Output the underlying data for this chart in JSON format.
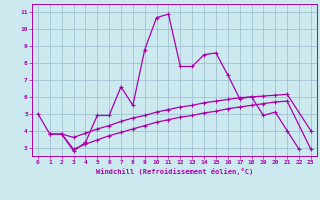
{
  "xlabel": "Windchill (Refroidissement éolien,°C)",
  "background_color": "#cce9f0",
  "line_color": "#aa00aa",
  "grid_color": "#99bbcc",
  "xlim": [
    -0.5,
    23.5
  ],
  "ylim": [
    2.5,
    11.5
  ],
  "xticks": [
    0,
    1,
    2,
    3,
    4,
    5,
    6,
    7,
    8,
    9,
    10,
    11,
    12,
    13,
    14,
    15,
    16,
    17,
    18,
    19,
    20,
    21,
    22,
    23
  ],
  "yticks": [
    3,
    4,
    5,
    6,
    7,
    8,
    9,
    10,
    11
  ],
  "line1_x": [
    0,
    1,
    2,
    3,
    4,
    5,
    6,
    7,
    8,
    9,
    10,
    11,
    12,
    13,
    14,
    15,
    16,
    17,
    18,
    19,
    20,
    21,
    22
  ],
  "line1_y": [
    5.0,
    3.8,
    3.8,
    2.8,
    3.3,
    4.9,
    4.9,
    6.6,
    5.5,
    8.8,
    10.7,
    10.9,
    7.8,
    7.8,
    8.5,
    8.6,
    7.3,
    5.9,
    6.0,
    4.9,
    5.1,
    4.0,
    2.9
  ],
  "line2_x": [
    1,
    2,
    3,
    4,
    5,
    6,
    7,
    8,
    9,
    10,
    11,
    12,
    13,
    14,
    15,
    16,
    17,
    18,
    19,
    20,
    21,
    23
  ],
  "line2_y": [
    3.8,
    3.8,
    3.6,
    3.85,
    4.1,
    4.3,
    4.55,
    4.75,
    4.9,
    5.1,
    5.25,
    5.4,
    5.5,
    5.65,
    5.75,
    5.85,
    5.95,
    6.0,
    6.05,
    6.1,
    6.15,
    4.0
  ],
  "line3_x": [
    2,
    3,
    4,
    5,
    6,
    7,
    8,
    9,
    10,
    11,
    12,
    13,
    14,
    15,
    16,
    17,
    18,
    19,
    20,
    21,
    23
  ],
  "line3_y": [
    3.8,
    2.9,
    3.2,
    3.45,
    3.7,
    3.9,
    4.1,
    4.3,
    4.5,
    4.65,
    4.8,
    4.9,
    5.05,
    5.15,
    5.3,
    5.4,
    5.5,
    5.6,
    5.7,
    5.75,
    2.9
  ]
}
